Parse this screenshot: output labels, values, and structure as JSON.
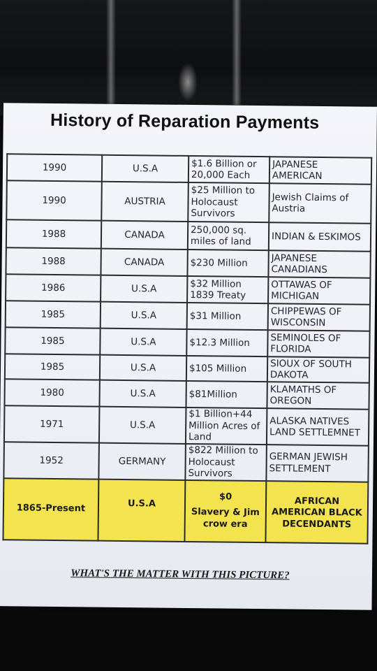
{
  "title": "History of Reparation Payments",
  "rows": [
    {
      "year": "1990",
      "country": "U.S.A",
      "amount": "$1.6 Billion or 20,000 Each",
      "recipient": "JAPANESE AMERICAN"
    },
    {
      "year": "1990",
      "country": "AUSTRIA",
      "amount": "$25 Million to Holocaust Survivors",
      "recipient": "Jewish Claims of Austria"
    },
    {
      "year": "1988",
      "country": "CANADA",
      "amount": "250,000 sq. miles of land",
      "recipient": "INDIAN & ESKIMOS"
    },
    {
      "year": "1988",
      "country": "CANADA",
      "amount": "$230 Million",
      "recipient": "JAPANESE CANADIANS"
    },
    {
      "year": "1986",
      "country": "U.S.A",
      "amount": "$32 Million 1839 Treaty",
      "recipient": "OTTAWAS OF MICHIGAN"
    },
    {
      "year": "1985",
      "country": "U.S.A",
      "amount": "$31 Million",
      "recipient": "CHIPPEWAS OF WISCONSIN"
    },
    {
      "year": "1985",
      "country": "U.S.A",
      "amount": "$12.3 Million",
      "recipient": "SEMINOLES OF FLORIDA"
    },
    {
      "year": "1985",
      "country": "U.S.A",
      "amount": "$105 Million",
      "recipient": "SIOUX OF SOUTH DAKOTA"
    },
    {
      "year": "1980",
      "country": "U.S.A",
      "amount": "$81Million",
      "recipient": "KLAMATHS OF OREGON"
    },
    {
      "year": "1971",
      "country": "U.S.A",
      "amount": "$1 Billion+44 Million Acres of Land",
      "recipient": "ALASKA NATIVES LAND SETTLEMNET"
    },
    {
      "year": "1952",
      "country": "GERMANY",
      "amount": "$822 Million to Holocaust Survivors",
      "recipient": "GERMAN JEWISH SETTLEMENT"
    }
  ],
  "highlight_row": {
    "year": "1865-Present",
    "country": "U.S.A",
    "amount_value": "$0",
    "amount_note": "Slavery & Jim crow era",
    "recipient": "AFRICAN AMERICAN BLACK DECENDANTS"
  },
  "tagline": "WHAT'S THE MATTER WITH THIS PICTURE?",
  "colors": {
    "highlight": "#f3e44f",
    "paper": "#f0f2f8",
    "background": "#0c0d0f"
  }
}
